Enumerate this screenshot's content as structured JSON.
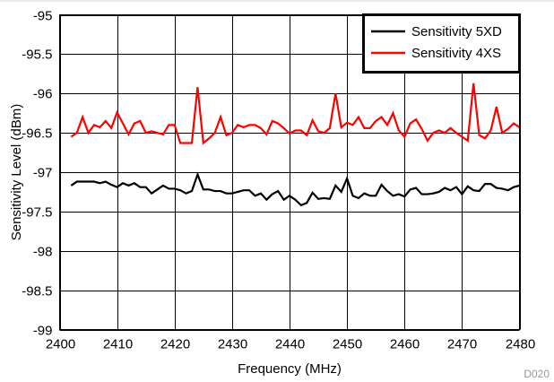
{
  "chart_data": {
    "type": "line",
    "xlabel": "Frequency (MHz)",
    "ylabel": "Sensitivity Level (dBm)",
    "xlim": [
      2400,
      2480
    ],
    "ylim": [
      -99,
      -95
    ],
    "xticks": [
      2400,
      2410,
      2420,
      2430,
      2440,
      2450,
      2460,
      2470,
      2480
    ],
    "yticks": [
      -99,
      -98.5,
      -98,
      -97.5,
      -97,
      -96.5,
      -96,
      -95.5,
      -95
    ],
    "grid": true,
    "legend_position": "top-right",
    "figure_id": "D020",
    "series": [
      {
        "name": "Sensitivity 5XD",
        "color": "#000000",
        "x": [
          2402,
          2403,
          2404,
          2405,
          2406,
          2407,
          2408,
          2409,
          2410,
          2411,
          2412,
          2413,
          2414,
          2415,
          2416,
          2417,
          2418,
          2419,
          2420,
          2421,
          2422,
          2423,
          2424,
          2425,
          2426,
          2427,
          2428,
          2429,
          2430,
          2431,
          2432,
          2433,
          2434,
          2435,
          2436,
          2437,
          2438,
          2439,
          2440,
          2441,
          2442,
          2443,
          2444,
          2445,
          2446,
          2447,
          2448,
          2449,
          2450,
          2451,
          2452,
          2453,
          2454,
          2455,
          2456,
          2457,
          2458,
          2459,
          2460,
          2461,
          2462,
          2463,
          2464,
          2465,
          2466,
          2467,
          2468,
          2469,
          2470,
          2471,
          2472,
          2473,
          2474,
          2475,
          2476,
          2477,
          2478,
          2479,
          2480
        ],
        "y": [
          -97.17,
          -97.12,
          -97.12,
          -97.12,
          -97.12,
          -97.14,
          -97.12,
          -97.16,
          -97.19,
          -97.14,
          -97.17,
          -97.14,
          -97.19,
          -97.19,
          -97.27,
          -97.22,
          -97.17,
          -97.21,
          -97.21,
          -97.23,
          -97.27,
          -97.24,
          -97.03,
          -97.22,
          -97.22,
          -97.24,
          -97.24,
          -97.27,
          -97.27,
          -97.25,
          -97.23,
          -97.23,
          -97.3,
          -97.27,
          -97.35,
          -97.28,
          -97.24,
          -97.35,
          -97.3,
          -97.35,
          -97.42,
          -97.39,
          -97.26,
          -97.34,
          -97.33,
          -97.34,
          -97.17,
          -97.25,
          -97.08,
          -97.3,
          -97.33,
          -97.27,
          -97.3,
          -97.3,
          -97.16,
          -97.24,
          -97.3,
          -97.28,
          -97.31,
          -97.22,
          -97.2,
          -97.28,
          -97.28,
          -97.27,
          -97.25,
          -97.2,
          -97.23,
          -97.19,
          -97.28,
          -97.18,
          -97.23,
          -97.24,
          -97.15,
          -97.15,
          -97.2,
          -97.21,
          -97.23,
          -97.19,
          -97.17
        ]
      },
      {
        "name": "Sensitivity 4XS",
        "color": "#ff0000",
        "x": [
          2402,
          2403,
          2404,
          2405,
          2406,
          2407,
          2408,
          2409,
          2410,
          2411,
          2412,
          2413,
          2414,
          2415,
          2416,
          2417,
          2418,
          2419,
          2420,
          2421,
          2422,
          2423,
          2424,
          2425,
          2426,
          2427,
          2428,
          2429,
          2430,
          2431,
          2432,
          2433,
          2434,
          2435,
          2436,
          2437,
          2438,
          2439,
          2440,
          2441,
          2442,
          2443,
          2444,
          2445,
          2446,
          2447,
          2448,
          2449,
          2450,
          2451,
          2452,
          2453,
          2454,
          2455,
          2456,
          2457,
          2458,
          2459,
          2460,
          2461,
          2462,
          2463,
          2464,
          2465,
          2466,
          2467,
          2468,
          2469,
          2470,
          2471,
          2472,
          2473,
          2474,
          2475,
          2476,
          2477,
          2478,
          2479,
          2480
        ],
        "y": [
          -96.55,
          -96.5,
          -96.3,
          -96.5,
          -96.4,
          -96.43,
          -96.35,
          -96.44,
          -96.24,
          -96.38,
          -96.52,
          -96.38,
          -96.35,
          -96.5,
          -96.48,
          -96.5,
          -96.52,
          -96.4,
          -96.4,
          -96.63,
          -96.63,
          -96.63,
          -95.92,
          -96.63,
          -96.57,
          -96.5,
          -96.3,
          -96.53,
          -96.5,
          -96.4,
          -96.43,
          -96.4,
          -96.4,
          -96.44,
          -96.52,
          -96.35,
          -96.38,
          -96.44,
          -96.51,
          -96.47,
          -96.47,
          -96.53,
          -96.34,
          -96.48,
          -96.5,
          -96.44,
          -96.0,
          -96.43,
          -96.37,
          -96.4,
          -96.3,
          -96.44,
          -96.44,
          -96.35,
          -96.3,
          -96.4,
          -96.25,
          -96.47,
          -96.55,
          -96.38,
          -96.33,
          -96.45,
          -96.6,
          -96.5,
          -96.47,
          -96.5,
          -96.44,
          -96.5,
          -96.55,
          -96.6,
          -95.87,
          -96.53,
          -96.57,
          -96.47,
          -96.17,
          -96.5,
          -96.45,
          -96.38,
          -96.43
        ]
      }
    ]
  }
}
